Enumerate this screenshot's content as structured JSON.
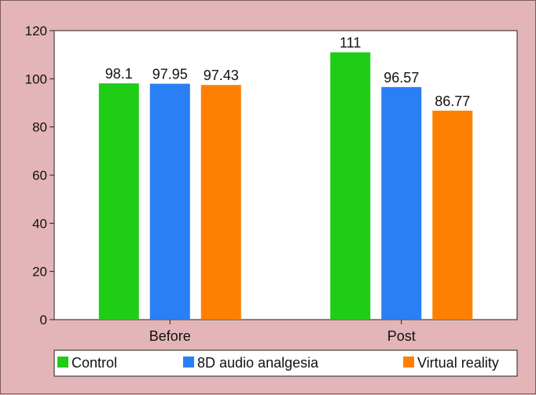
{
  "chart_data": {
    "type": "bar",
    "categories": [
      "Before",
      "Post"
    ],
    "series": [
      {
        "name": "Control",
        "values": [
          98.1,
          111
        ],
        "labels": [
          "98.1",
          "111"
        ],
        "color": "#1fcc16"
      },
      {
        "name": "8D audio analgesia",
        "values": [
          97.95,
          96.57
        ],
        "labels": [
          "97.95",
          "96.57"
        ],
        "color": "#2a7ff5"
      },
      {
        "name": "Virtual reality",
        "values": [
          97.43,
          86.77
        ],
        "labels": [
          "97.43",
          "86.77"
        ],
        "color": "#ff7f00"
      }
    ],
    "ylim": [
      0,
      120
    ],
    "yticks": [
      "0",
      "20",
      "40",
      "60",
      "80",
      "100",
      "120"
    ],
    "grid": false,
    "legend_placement": "bottom",
    "plot_background": "#ffffff",
    "page_background": "#e4b5b8"
  }
}
